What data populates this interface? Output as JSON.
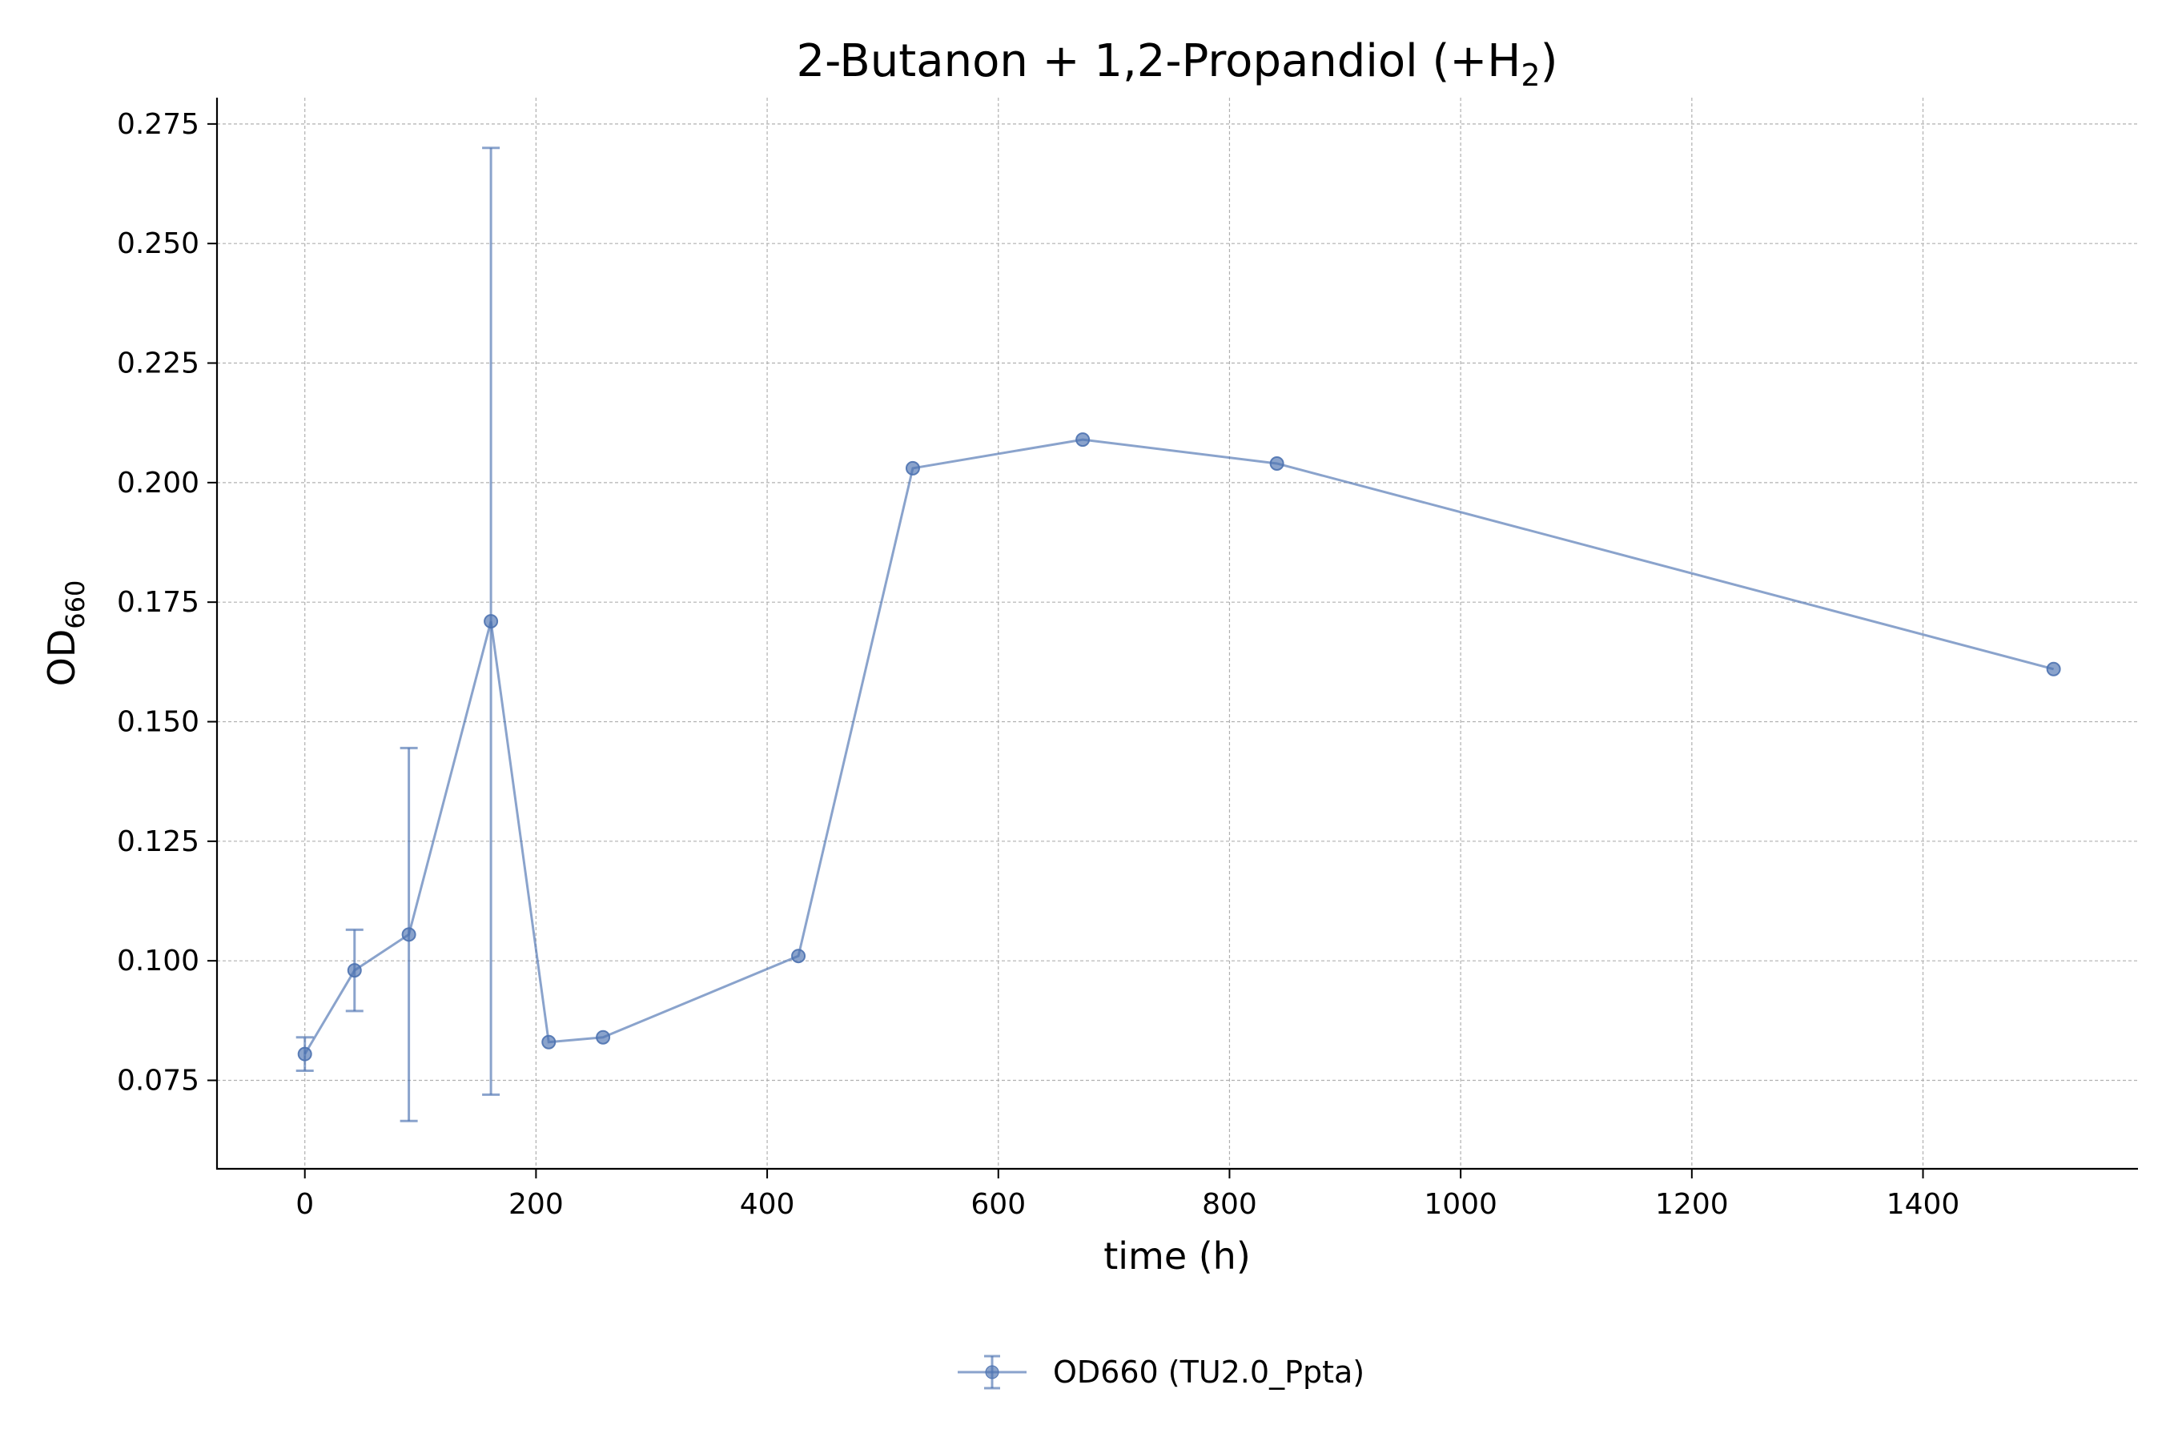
{
  "chart_data": {
    "type": "line",
    "title": "2-Butanon + 1,2-Propandiol (+H",
    "title_sub": "2",
    "title_end": ")",
    "xlabel": "time (h)",
    "ylabel": "OD",
    "ylabel_sub": "660",
    "xlim": [
      -76,
      1586
    ],
    "ylim": [
      0.0565,
      0.2805
    ],
    "xticks": [
      0,
      200,
      400,
      600,
      800,
      1000,
      1200,
      1400
    ],
    "xtick_labels": [
      "0",
      "200",
      "400",
      "600",
      "800",
      "1000",
      "1200",
      "1400"
    ],
    "yticks": [
      0.075,
      0.1,
      0.125,
      0.15,
      0.175,
      0.2,
      0.225,
      0.25,
      0.275
    ],
    "ytick_labels": [
      "0.075",
      "0.100",
      "0.125",
      "0.150",
      "0.175",
      "0.200",
      "0.225",
      "0.250",
      "0.275"
    ],
    "grid": true,
    "legend_position": "bottom-center",
    "series": [
      {
        "name": "OD660 (TU2.0_Ppta)",
        "color": "#4c72b0",
        "x": [
          0,
          43,
          90,
          161,
          211,
          258,
          427,
          526,
          673,
          841,
          1513
        ],
        "y": [
          0.0805,
          0.098,
          0.1055,
          0.171,
          0.083,
          0.084,
          0.101,
          0.203,
          0.209,
          0.204,
          0.161
        ],
        "err_low": [
          0.077,
          0.0895,
          0.0665,
          0.072,
          null,
          null,
          null,
          null,
          null,
          null,
          null
        ],
        "err_high": [
          0.084,
          0.1065,
          0.1445,
          0.27,
          null,
          null,
          null,
          null,
          null,
          null,
          null
        ]
      }
    ]
  }
}
